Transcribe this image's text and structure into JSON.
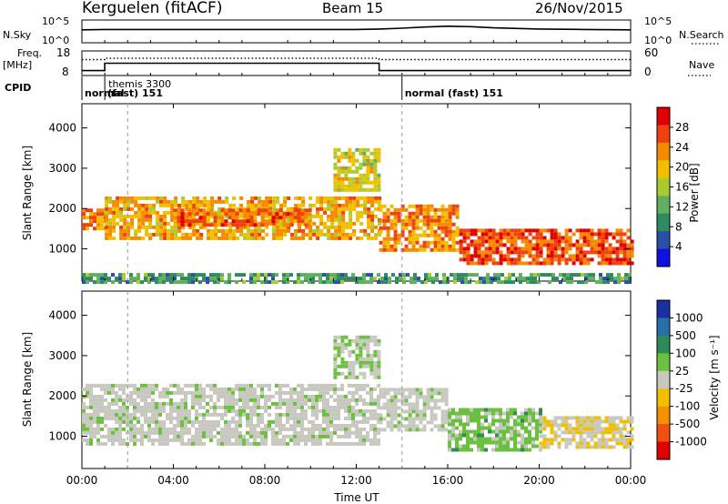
{
  "header": {
    "station": "Kerguelen (fitACF)",
    "beam": "Beam 15",
    "date": "26/Nov/2015"
  },
  "panel_labels": {
    "nsky": "N.Sky",
    "freq": "Freq.",
    "freq_unit": "[MHz]",
    "cpid": "CPID",
    "nsearch": "N.Search",
    "nave": "Nave"
  },
  "cpid_segments": [
    {
      "label": "normal",
      "start": 0,
      "end": 1.0
    },
    {
      "label_top": "themis 3300",
      "label": "(fast) 151",
      "start": 1.0,
      "end": 14.0
    },
    {
      "label": "normal (fast) 151",
      "start": 14.0,
      "end": 24.0
    }
  ],
  "colorbars": {
    "power": {
      "title": "Power [dB]",
      "ticks": [
        "28",
        "24",
        "20",
        "16",
        "12",
        "8",
        "4"
      ],
      "colors": [
        "#1010e0",
        "#2a4fa8",
        "#2f8a60",
        "#5fb060",
        "#a8cc30",
        "#f0c000",
        "#f58a00",
        "#f04010",
        "#e00000"
      ]
    },
    "velocity": {
      "title": "Velocity [m s⁻¹]",
      "ticks": [
        "1000",
        "500",
        "100",
        "25",
        "-25",
        "-100",
        "-500",
        "-1000"
      ],
      "colors": [
        "#1a2fa0",
        "#2a70a8",
        "#2e8a58",
        "#6cc040",
        "#c8c8c0",
        "#f0c000",
        "#f59000",
        "#f05010",
        "#e00000"
      ]
    }
  },
  "chart_data": [
    {
      "type": "line",
      "title": "N.Sky / N.Search",
      "ylabel": "N.Sky",
      "y_tick_labels": [
        "10^5",
        "10^0"
      ],
      "right_tick_labels": [
        "10^5",
        "10^0"
      ],
      "x": [
        0,
        1,
        2,
        4,
        6,
        8,
        10,
        12,
        13,
        14,
        15,
        16,
        17,
        18,
        20,
        22,
        24
      ],
      "series": [
        {
          "name": "N.Sky",
          "values": [
            3.0,
            3.1,
            3.1,
            3.1,
            3.1,
            3.1,
            3.1,
            3.1,
            3.2,
            3.4,
            3.7,
            3.9,
            3.8,
            3.5,
            3.2,
            3.1,
            3.0
          ]
        }
      ]
    },
    {
      "type": "line",
      "title": "Freq / Nave",
      "ylabel": "Freq. [MHz]",
      "y_tick_labels": [
        "18",
        "8"
      ],
      "right_tick_labels": [
        "60",
        "0"
      ],
      "ylim": [
        8,
        18
      ],
      "x": [
        0,
        1.0,
        1.0,
        13.0,
        13.0,
        24
      ],
      "series": [
        {
          "name": "Freq",
          "values": [
            10.0,
            10.0,
            13.0,
            13.0,
            10.0,
            10.0
          ]
        },
        {
          "name": "Nave",
          "values": [
            39,
            39,
            42,
            42,
            39,
            39
          ]
        }
      ]
    },
    {
      "type": "heatmap",
      "title": "Power",
      "xlabel": "Time UT",
      "ylabel": "Slant Range [km]",
      "xlim": [
        0,
        24
      ],
      "ylim": [
        200,
        4600
      ],
      "x_tick_labels": [
        "00:00",
        "04:00",
        "08:00",
        "12:00",
        "16:00",
        "20:00",
        "00:00"
      ],
      "y_tick_labels": [
        "1000",
        "2000",
        "3000",
        "4000"
      ],
      "features": [
        {
          "t0": 0.0,
          "t1": 1.0,
          "r0": 1500,
          "r1": 2000,
          "value_db": 24
        },
        {
          "t0": 1.0,
          "t1": 13.0,
          "r0": 1300,
          "r1": 2300,
          "value_db": 22
        },
        {
          "t0": 4.0,
          "t1": 10.0,
          "r0": 1600,
          "r1": 2000,
          "value_db": 26
        },
        {
          "t0": 13.0,
          "t1": 16.5,
          "r0": 1000,
          "r1": 2100,
          "value_db": 24
        },
        {
          "t0": 16.5,
          "t1": 24.0,
          "r0": 600,
          "r1": 1500,
          "value_db": 28
        },
        {
          "t0": 11.0,
          "t1": 13.0,
          "r0": 2500,
          "r1": 3500,
          "value_db": 18
        },
        {
          "t0": 0.0,
          "t1": 24.0,
          "r0": 200,
          "r1": 400,
          "value_db": 10
        }
      ]
    },
    {
      "type": "heatmap",
      "title": "Velocity",
      "xlabel": "Time UT",
      "ylabel": "Slant Range [km]",
      "xlim": [
        0,
        24
      ],
      "ylim": [
        200,
        4600
      ],
      "x_tick_labels": [
        "00:00",
        "04:00",
        "08:00",
        "12:00",
        "16:00",
        "20:00",
        "00:00"
      ],
      "y_tick_labels": [
        "1000",
        "2000",
        "3000",
        "4000"
      ],
      "features": [
        {
          "t0": 0.0,
          "t1": 13.0,
          "r0": 800,
          "r1": 2300,
          "value_ms": 0
        },
        {
          "t0": 13.0,
          "t1": 16.0,
          "r0": 1200,
          "r1": 2200,
          "value_ms": 0
        },
        {
          "t0": 16.0,
          "t1": 20.0,
          "r0": 700,
          "r1": 1700,
          "value_ms": 200
        },
        {
          "t0": 20.0,
          "t1": 24.0,
          "r0": 700,
          "r1": 1500,
          "value_ms": -100
        },
        {
          "t0": 11.0,
          "t1": 13.0,
          "r0": 2500,
          "r1": 3500,
          "value_ms": 100
        }
      ]
    }
  ]
}
